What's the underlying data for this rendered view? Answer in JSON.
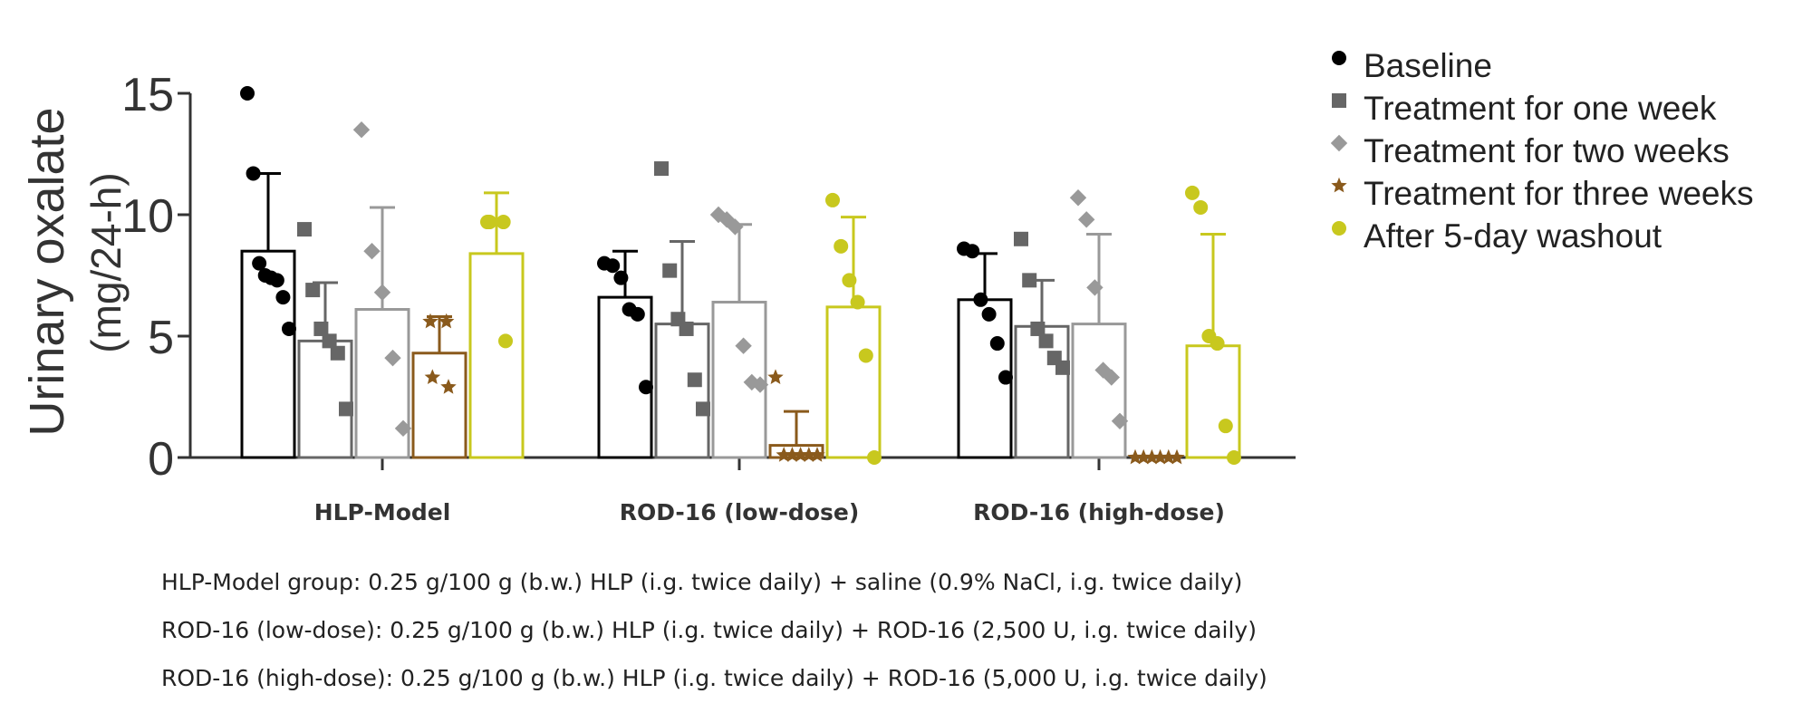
{
  "chart_data": {
    "type": "bar",
    "ylabel": "Urinary oxalate",
    "ylabel_unit": "(mg/24-h)",
    "ylim": [
      0,
      15
    ],
    "yticks": [
      "0",
      "5",
      "10",
      "15"
    ],
    "categories": [
      "HLP-Model",
      "ROD-16 (low-dose)",
      "ROD-16 (high-dose)"
    ],
    "legend_position": "right",
    "series": [
      {
        "name": "Baseline",
        "color": "#000000",
        "marker": "circle",
        "values": [
          8.5,
          6.6,
          6.5
        ],
        "error": [
          3.2,
          1.9,
          1.9
        ],
        "points": [
          [
            15.0,
            11.7,
            8.0,
            7.5,
            7.4,
            7.3,
            6.6,
            5.3
          ],
          [
            8.0,
            7.9,
            7.4,
            6.1,
            5.9,
            2.9
          ],
          [
            8.6,
            8.5,
            6.5,
            5.9,
            4.7,
            3.3
          ]
        ]
      },
      {
        "name": "Treatment for one week",
        "color": "#666666",
        "marker": "square",
        "values": [
          4.8,
          5.5,
          5.4
        ],
        "error": [
          2.4,
          3.4,
          1.9
        ],
        "points": [
          [
            9.4,
            6.9,
            5.3,
            4.8,
            4.3,
            2.0
          ],
          [
            11.9,
            7.7,
            5.7,
            5.3,
            3.2,
            2.0
          ],
          [
            9.0,
            7.3,
            5.3,
            4.8,
            4.1,
            3.7
          ]
        ]
      },
      {
        "name": "Treatment for two weeks",
        "color": "#999999",
        "marker": "diamond",
        "values": [
          6.1,
          6.4,
          5.5
        ],
        "error": [
          4.2,
          3.2,
          3.7
        ],
        "points": [
          [
            13.5,
            8.5,
            6.8,
            4.1,
            1.2
          ],
          [
            10.0,
            9.8,
            9.5,
            4.6,
            3.1,
            3.0
          ],
          [
            10.7,
            9.8,
            7.0,
            3.6,
            3.3,
            1.5
          ]
        ]
      },
      {
        "name": "Treatment for three weeks",
        "color": "#8a5a1c",
        "marker": "star",
        "values": [
          4.3,
          0.5,
          0.0
        ],
        "error": [
          1.5,
          1.4,
          0.0
        ],
        "points": [
          [
            5.6,
            5.6,
            3.3,
            2.9
          ],
          [
            3.3,
            0.1,
            0.1,
            0.1,
            0.1,
            0.1
          ],
          [
            0.0,
            0.0,
            0.0,
            0.0,
            0.0,
            0.0
          ]
        ]
      },
      {
        "name": "After 5-day washout",
        "color": "#c8c81e",
        "marker": "circle",
        "values": [
          8.4,
          6.2,
          4.6
        ],
        "error": [
          2.5,
          3.7,
          4.6
        ],
        "points": [
          [
            9.7,
            9.7,
            9.7,
            4.8
          ],
          [
            10.6,
            8.7,
            7.3,
            6.4,
            4.2,
            0.0
          ],
          [
            10.9,
            10.3,
            5.0,
            4.7,
            1.3,
            0.0
          ]
        ]
      }
    ]
  },
  "notes": [
    "HLP-Model group: 0.25 g/100 g (b.w.) HLP (i.g. twice daily) + saline (0.9% NaCl, i.g. twice daily)",
    "ROD-16 (low-dose): 0.25 g/100 g (b.w.) HLP (i.g. twice daily) + ROD-16 (2,500 U, i.g. twice daily)",
    "ROD-16 (high-dose): 0.25 g/100 g (b.w.) HLP (i.g. twice daily) + ROD-16 (5,000 U, i.g. twice daily)"
  ]
}
